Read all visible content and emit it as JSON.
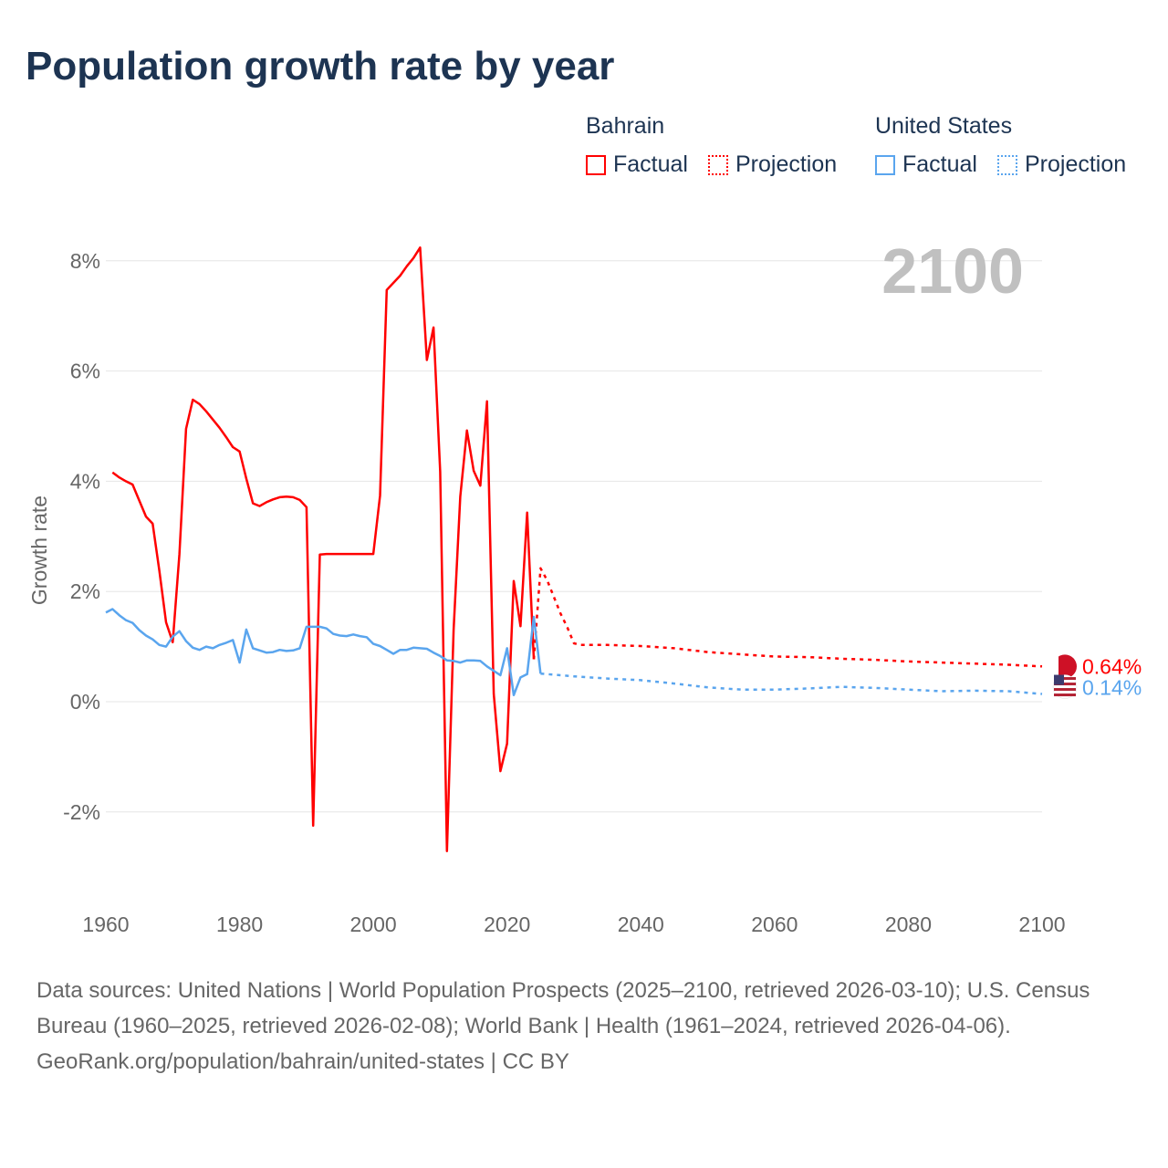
{
  "title": "Population growth rate by year",
  "legend": {
    "groups": [
      {
        "name": "Bahrain",
        "color": "#ff0000",
        "factual": "Factual",
        "projection": "Projection"
      },
      {
        "name": "United States",
        "color": "#5aa5ee",
        "factual": "Factual",
        "projection": "Projection"
      }
    ]
  },
  "footer": {
    "sources": "Data sources: United Nations | World Population Prospects (2025–2100, retrieved 2026-03-10); U.S. Census Bureau (1960–2025, retrieved 2026-02-08); World Bank | Health (1961–2024, retrieved 2026-04-06).",
    "credit": "GeoRank.org/population/bahrain/united-states | CC BY"
  },
  "chart_data": {
    "type": "line",
    "title": "Population growth rate by year",
    "xlabel": "",
    "ylabel": "Growth rate",
    "xlim": [
      1960,
      2100
    ],
    "ylim": [
      -3,
      8.5
    ],
    "xticks": [
      "1960",
      "1980",
      "2000",
      "2020",
      "2040",
      "2060",
      "2080",
      "2100"
    ],
    "yticks": [
      {
        "v": 8,
        "label": "8%"
      },
      {
        "v": 6,
        "label": "6%"
      },
      {
        "v": 4,
        "label": "4%"
      },
      {
        "v": 2,
        "label": "2%"
      },
      {
        "v": 0,
        "label": "0%"
      },
      {
        "v": -2,
        "label": "-2%"
      }
    ],
    "year_label": "2100",
    "grid": true,
    "series": [
      {
        "name": "Bahrain",
        "kind": "factual",
        "color": "#ff0000",
        "x": [
          1961,
          1962,
          1963,
          1964,
          1965,
          1966,
          1967,
          1968,
          1969,
          1970,
          1971,
          1972,
          1973,
          1974,
          1975,
          1976,
          1977,
          1978,
          1979,
          1980,
          1981,
          1982,
          1983,
          1984,
          1985,
          1986,
          1987,
          1988,
          1989,
          1990,
          1991,
          1992,
          1993,
          1994,
          1995,
          1996,
          1997,
          1998,
          1999,
          2000,
          2001,
          2002,
          2003,
          2004,
          2005,
          2006,
          2007,
          2008,
          2009,
          2010,
          2011,
          2012,
          2013,
          2014,
          2015,
          2016,
          2017,
          2018,
          2019,
          2020,
          2021,
          2022,
          2023,
          2024
        ],
        "y": [
          4.16,
          4.07,
          4.0,
          3.94,
          3.65,
          3.36,
          3.23,
          2.38,
          1.44,
          1.08,
          2.67,
          4.95,
          5.48,
          5.4,
          5.27,
          5.12,
          4.97,
          4.8,
          4.62,
          4.54,
          4.05,
          3.6,
          3.55,
          3.62,
          3.67,
          3.71,
          3.72,
          3.71,
          3.66,
          3.53,
          -2.25,
          2.67,
          2.68,
          2.68,
          2.68,
          2.68,
          2.68,
          2.68,
          2.68,
          2.68,
          3.74,
          7.47,
          7.6,
          7.73,
          7.9,
          8.05,
          8.24,
          6.2,
          6.79,
          4.17,
          -2.71,
          1.3,
          3.72,
          4.92,
          4.19,
          3.92,
          5.45,
          0.14,
          -1.26,
          -0.76,
          2.19,
          1.37,
          3.43,
          0.77
        ]
      },
      {
        "name": "Bahrain",
        "kind": "projection",
        "color": "#ff0000",
        "x": [
          2024,
          2025,
          2026,
          2027,
          2028,
          2029,
          2030,
          2031,
          2035,
          2040,
          2045,
          2050,
          2055,
          2060,
          2065,
          2070,
          2075,
          2080,
          2085,
          2090,
          2095,
          2100
        ],
        "y": [
          0.77,
          2.42,
          2.2,
          1.9,
          1.6,
          1.35,
          1.06,
          1.03,
          1.03,
          1.01,
          0.97,
          0.9,
          0.86,
          0.82,
          0.81,
          0.78,
          0.76,
          0.73,
          0.71,
          0.69,
          0.67,
          0.64
        ]
      },
      {
        "name": "United States",
        "kind": "factual",
        "color": "#5aa5ee",
        "x": [
          1960,
          1961,
          1962,
          1963,
          1964,
          1965,
          1966,
          1967,
          1968,
          1969,
          1970,
          1971,
          1972,
          1973,
          1974,
          1975,
          1976,
          1977,
          1978,
          1979,
          1980,
          1981,
          1982,
          1983,
          1984,
          1985,
          1986,
          1987,
          1988,
          1989,
          1990,
          1991,
          1992,
          1993,
          1994,
          1995,
          1996,
          1997,
          1998,
          1999,
          2000,
          2001,
          2002,
          2003,
          2004,
          2005,
          2006,
          2007,
          2008,
          2009,
          2010,
          2011,
          2012,
          2013,
          2014,
          2015,
          2016,
          2017,
          2018,
          2019,
          2020,
          2021,
          2022,
          2023,
          2024,
          2025
        ],
        "y": [
          1.62,
          1.68,
          1.57,
          1.48,
          1.43,
          1.3,
          1.2,
          1.13,
          1.03,
          1.0,
          1.18,
          1.28,
          1.1,
          0.98,
          0.94,
          1.0,
          0.97,
          1.03,
          1.07,
          1.12,
          0.71,
          1.31,
          0.97,
          0.93,
          0.89,
          0.9,
          0.94,
          0.92,
          0.93,
          0.97,
          1.36,
          1.36,
          1.36,
          1.33,
          1.23,
          1.2,
          1.19,
          1.22,
          1.19,
          1.17,
          1.05,
          1.01,
          0.94,
          0.87,
          0.94,
          0.94,
          0.98,
          0.97,
          0.96,
          0.89,
          0.83,
          0.75,
          0.74,
          0.71,
          0.75,
          0.75,
          0.74,
          0.64,
          0.56,
          0.48,
          0.97,
          0.12,
          0.44,
          0.5,
          1.54,
          0.51
        ]
      },
      {
        "name": "United States",
        "kind": "projection",
        "color": "#5aa5ee",
        "x": [
          2025,
          2030,
          2035,
          2040,
          2045,
          2050,
          2055,
          2060,
          2065,
          2070,
          2075,
          2080,
          2085,
          2090,
          2095,
          2100
        ],
        "y": [
          0.51,
          0.46,
          0.42,
          0.39,
          0.33,
          0.26,
          0.22,
          0.22,
          0.24,
          0.27,
          0.25,
          0.22,
          0.19,
          0.2,
          0.19,
          0.14
        ]
      }
    ],
    "end_labels": [
      {
        "name": "Bahrain",
        "value": 0.64,
        "label": "0.64%",
        "color": "#ff0000"
      },
      {
        "name": "United States",
        "value": 0.14,
        "label": "0.14%",
        "color": "#5aa5ee"
      }
    ]
  }
}
